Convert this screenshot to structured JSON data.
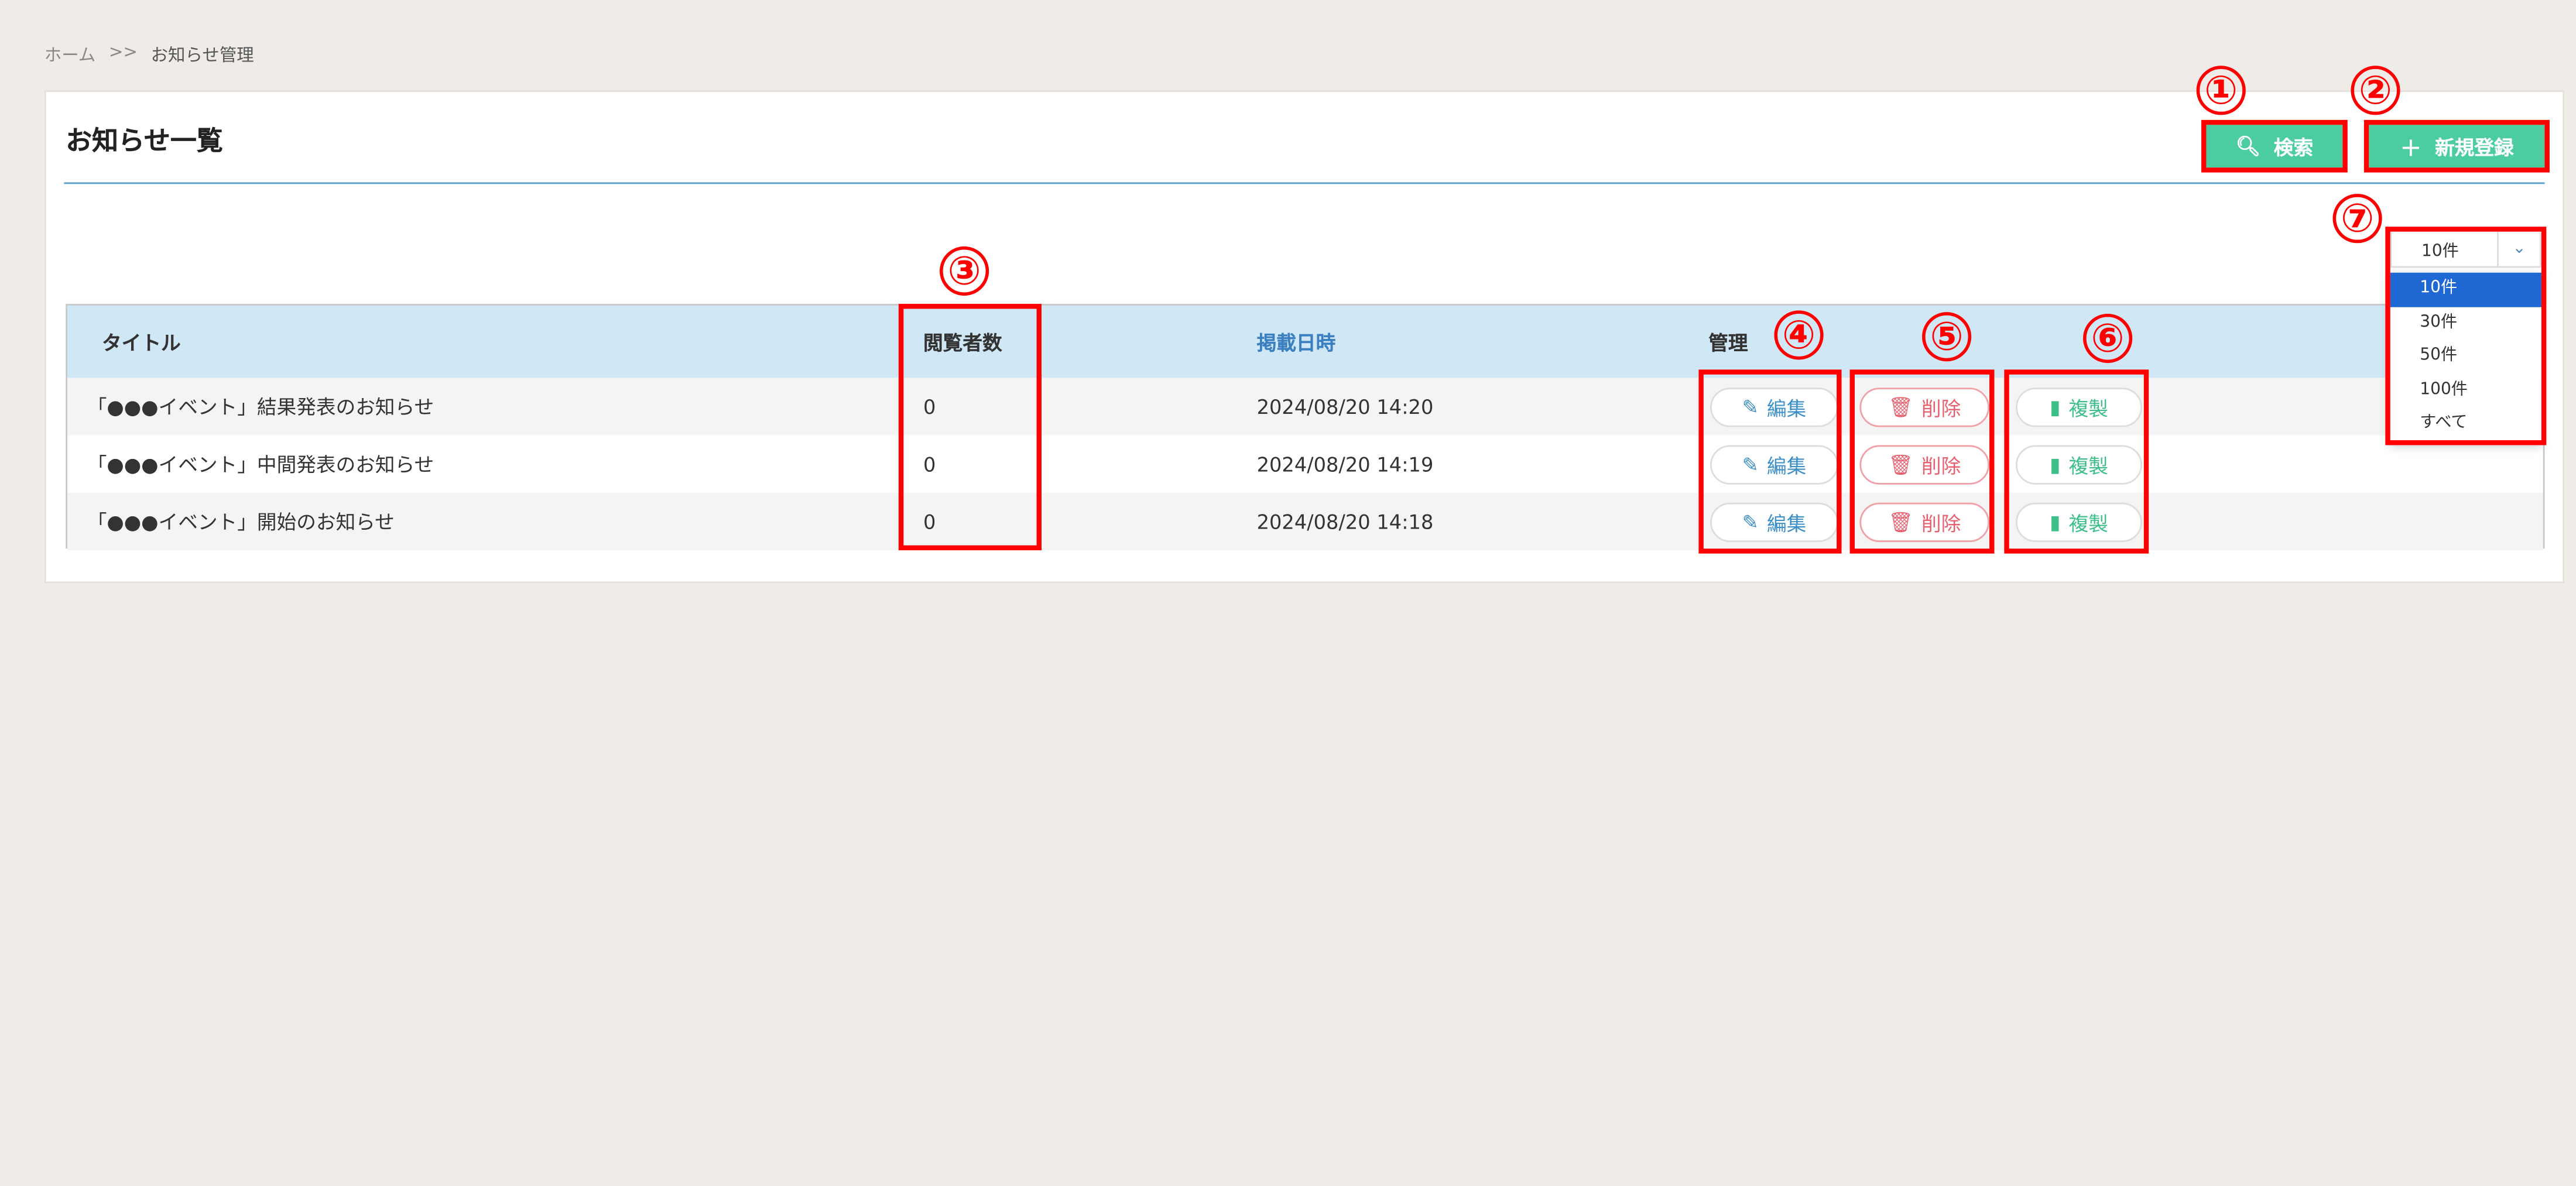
{
  "breadcrumb": {
    "home": "ホーム",
    "sep": ">>",
    "current": "お知らせ管理"
  },
  "page_title": "お知らせ一覧",
  "toolbar": {
    "search_label": "検索",
    "new_label": "新規登録"
  },
  "per_page": {
    "selected": "10件",
    "options": [
      "10件",
      "30件",
      "50件",
      "100件",
      "すべて"
    ]
  },
  "table": {
    "headers": {
      "title": "タイトル",
      "viewers": "閲覧者数",
      "posted": "掲載日時",
      "manage": "管理"
    },
    "rows": [
      {
        "title": "「●●●イベント」結果発表のお知らせ",
        "viewers": "0",
        "posted": "2024/08/20 14:20"
      },
      {
        "title": "「●●●イベント」中間発表のお知らせ",
        "viewers": "0",
        "posted": "2024/08/20 14:19"
      },
      {
        "title": "「●●●イベント」開始のお知らせ",
        "viewers": "0",
        "posted": "2024/08/20 14:18"
      }
    ],
    "actions": {
      "edit": "編集",
      "delete": "削除",
      "copy": "複製"
    }
  },
  "annotations": [
    "①",
    "②",
    "③",
    "④",
    "⑤",
    "⑥",
    "⑦"
  ],
  "colors": {
    "primary": "#4ccd9f",
    "header_bg": "#d0e7f5",
    "accent_blue": "#3a7fc0",
    "danger": "#e8606e",
    "annotation": "#ff0000",
    "selected_option": "#1f67d2"
  }
}
